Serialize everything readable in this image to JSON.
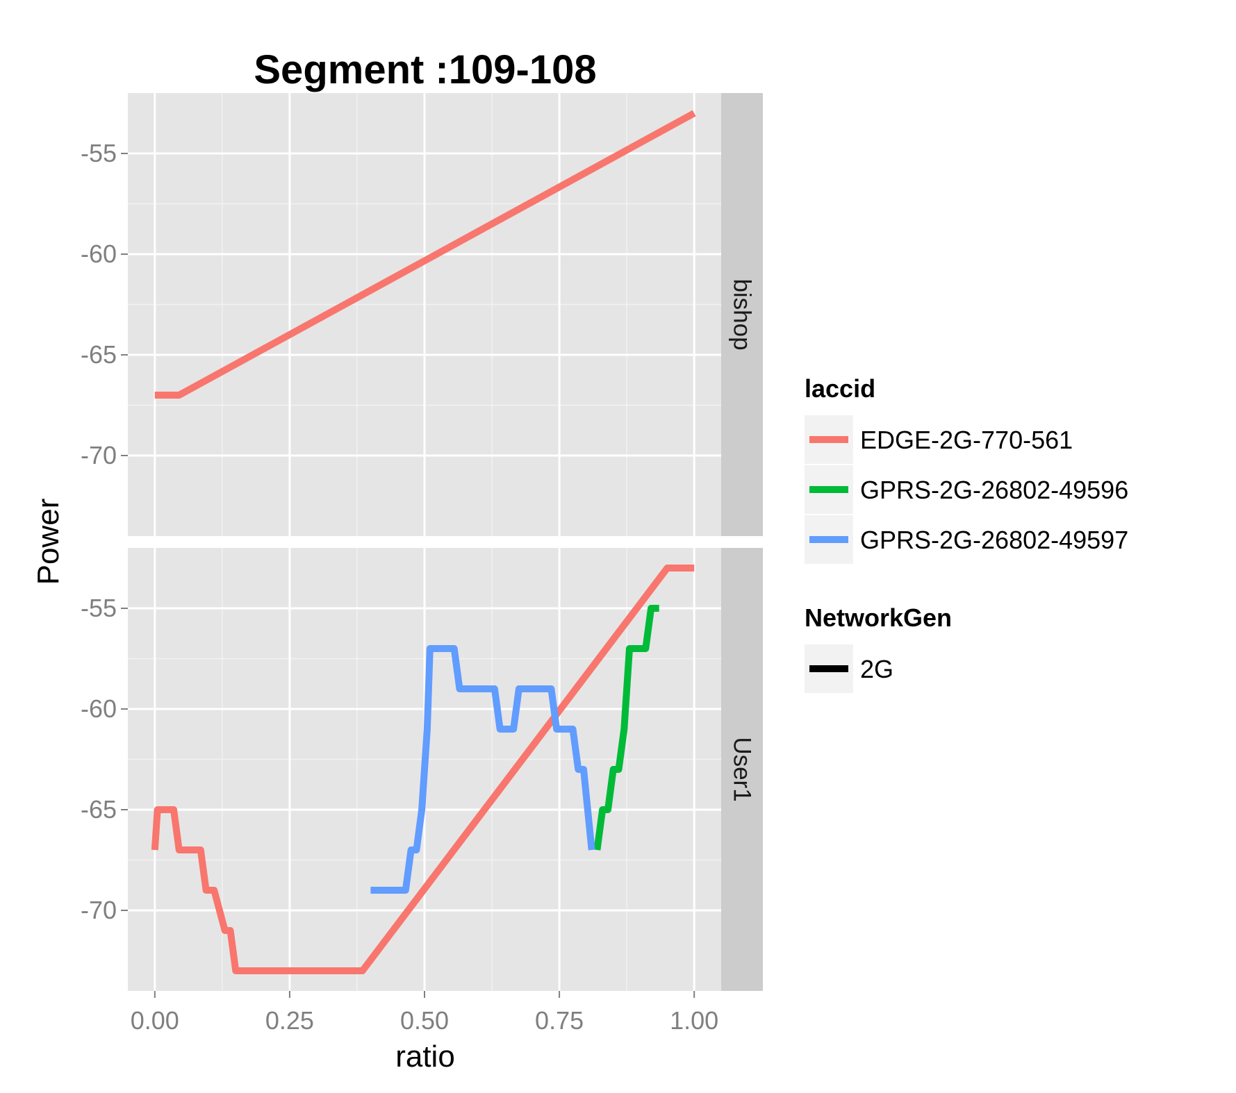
{
  "chart_data": {
    "type": "line",
    "title": "Segment :109-108",
    "xlabel": "ratio",
    "ylabel": "Power",
    "xlim": [
      -0.05,
      1.05
    ],
    "ylim": [
      -74,
      -52
    ],
    "x_ticks": [
      0,
      0.25,
      0.5,
      0.75,
      1.0
    ],
    "x_tick_labels": [
      "0.00",
      "0.25",
      "0.50",
      "0.75",
      "1.00"
    ],
    "y_ticks": [
      -70,
      -65,
      -60,
      -55
    ],
    "y_tick_labels": [
      "-70",
      "-65",
      "-60",
      "-55"
    ],
    "grid": true,
    "facets": [
      {
        "label": "bishop",
        "series": [
          {
            "name": "EDGE-2G-770-561",
            "color": "#F8766D",
            "points": [
              [
                0.0,
                -67
              ],
              [
                0.045,
                -67
              ],
              [
                1.0,
                -53
              ]
            ]
          }
        ]
      },
      {
        "label": "User1",
        "series": [
          {
            "name": "EDGE-2G-770-561",
            "color": "#F8766D",
            "points": [
              [
                0.0,
                -67
              ],
              [
                0.005,
                -65
              ],
              [
                0.035,
                -65
              ],
              [
                0.045,
                -67
              ],
              [
                0.085,
                -67
              ],
              [
                0.095,
                -69
              ],
              [
                0.11,
                -69
              ],
              [
                0.13,
                -71
              ],
              [
                0.14,
                -71
              ],
              [
                0.15,
                -73
              ],
              [
                0.385,
                -73
              ],
              [
                0.95,
                -53
              ],
              [
                1.0,
                -53
              ]
            ]
          },
          {
            "name": "GPRS-2G-26802-49596",
            "color": "#00BA38",
            "points": [
              [
                0.82,
                -67
              ],
              [
                0.83,
                -65
              ],
              [
                0.84,
                -65
              ],
              [
                0.85,
                -63
              ],
              [
                0.86,
                -63
              ],
              [
                0.87,
                -61
              ],
              [
                0.88,
                -57
              ],
              [
                0.91,
                -57
              ],
              [
                0.92,
                -55
              ],
              [
                0.935,
                -55
              ]
            ]
          },
          {
            "name": "GPRS-2G-26802-49597",
            "color": "#619CFF",
            "points": [
              [
                0.4,
                -69
              ],
              [
                0.465,
                -69
              ],
              [
                0.475,
                -67
              ],
              [
                0.485,
                -67
              ],
              [
                0.495,
                -65
              ],
              [
                0.505,
                -61
              ],
              [
                0.51,
                -57
              ],
              [
                0.555,
                -57
              ],
              [
                0.565,
                -59
              ],
              [
                0.63,
                -59
              ],
              [
                0.64,
                -61
              ],
              [
                0.665,
                -61
              ],
              [
                0.675,
                -59
              ],
              [
                0.735,
                -59
              ],
              [
                0.745,
                -61
              ],
              [
                0.775,
                -61
              ],
              [
                0.785,
                -63
              ],
              [
                0.795,
                -63
              ],
              [
                0.81,
                -67
              ]
            ]
          }
        ]
      }
    ],
    "legends": [
      {
        "title": "laccid",
        "entries": [
          {
            "label": "EDGE-2G-770-561",
            "color": "#F8766D"
          },
          {
            "label": "GPRS-2G-26802-49596",
            "color": "#00BA38"
          },
          {
            "label": "GPRS-2G-26802-49597",
            "color": "#619CFF"
          }
        ]
      },
      {
        "title": "NetworkGen",
        "entries": [
          {
            "label": "2G",
            "color": "#000000"
          }
        ]
      }
    ],
    "legend_position": "right",
    "panel_background": "#E5E5E5",
    "strip_background": "#CCCCCC"
  }
}
